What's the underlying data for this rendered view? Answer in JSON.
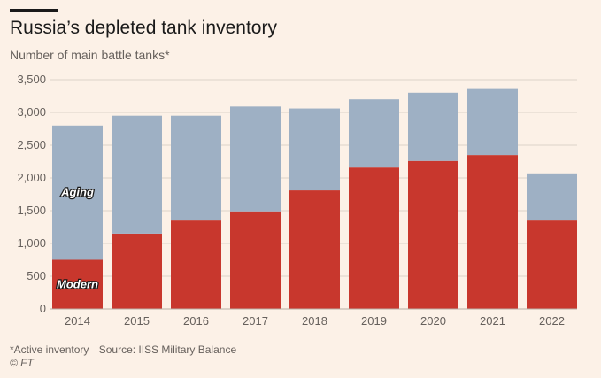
{
  "header": {
    "title": "Russia’s depleted tank inventory",
    "subtitle": "Number of main battle tanks*"
  },
  "footer": {
    "note": "*Active inventory",
    "source": "Source: IISS Military Balance",
    "copyright": "© FT"
  },
  "colors": {
    "modern": "#c8372d",
    "aging": "#9eb0c4",
    "grid": "#ddd3ca",
    "background": "#fcf1e7"
  },
  "chart_data": {
    "type": "bar",
    "stacked": true,
    "title": "Russia’s depleted tank inventory",
    "subtitle": "Number of main battle tanks*",
    "xlabel": "",
    "ylabel": "",
    "ylim": [
      0,
      3500
    ],
    "yticks": [
      0,
      500,
      1000,
      1500,
      2000,
      2500,
      3000,
      3500
    ],
    "ytick_labels": [
      "0",
      "500",
      "1,000",
      "1,500",
      "2,000",
      "2,500",
      "3,000",
      "3,500"
    ],
    "grid": true,
    "categories": [
      "2014",
      "2015",
      "2016",
      "2017",
      "2018",
      "2019",
      "2020",
      "2021",
      "2022"
    ],
    "series": [
      {
        "name": "Modern",
        "values": [
          750,
          1150,
          1350,
          1490,
          1810,
          2160,
          2260,
          2350,
          1350
        ]
      },
      {
        "name": "Aging",
        "values": [
          2050,
          1800,
          1600,
          1600,
          1250,
          1040,
          1040,
          1020,
          720
        ]
      }
    ],
    "legend": "inline-labels-on-first-bar"
  }
}
